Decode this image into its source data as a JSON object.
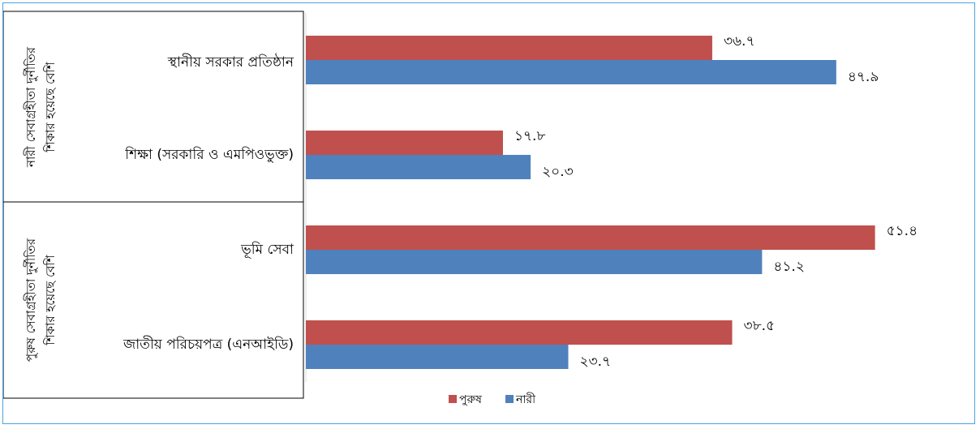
{
  "chart_data": {
    "type": "bar",
    "orientation": "horizontal",
    "groups": [
      {
        "label_lines": [
          "নারী সেবাগ্রহীতা দুর্নীতির",
          "শিকার হয়েছে বেশি"
        ],
        "categories": [
          {
            "label": "স্থানীয় সরকার প্রতিষ্ঠান",
            "values": [
              36.7,
              47.9
            ],
            "value_labels": [
              "৩৬.৭",
              "৪৭.৯"
            ]
          },
          {
            "label": "শিক্ষা (সরকারি ও এমপিওভুক্ত)",
            "values": [
              17.8,
              20.3
            ],
            "value_labels": [
              "১৭.৮",
              "২০.৩"
            ]
          }
        ]
      },
      {
        "label_lines": [
          "পুরুষ সেবাগ্রহীতা দুর্নীতির",
          "শিকার হয়েছে বেশি"
        ],
        "categories": [
          {
            "label": "ভূমি সেবা",
            "values": [
              51.4,
              41.2
            ],
            "value_labels": [
              "৫১.৪",
              "৪১.২"
            ]
          },
          {
            "label": "জাতীয় পরিচয়পত্র (এনআইডি)",
            "values": [
              38.5,
              23.7
            ],
            "value_labels": [
              "৩৮.৫",
              "২৩.৭"
            ]
          }
        ]
      }
    ],
    "series": [
      {
        "name": "পুরুষ",
        "color": "#c0504d"
      },
      {
        "name": "নারী",
        "color": "#4f81bd"
      }
    ],
    "xlim": [
      0,
      55
    ],
    "grid": false,
    "legend_position": "bottom"
  }
}
